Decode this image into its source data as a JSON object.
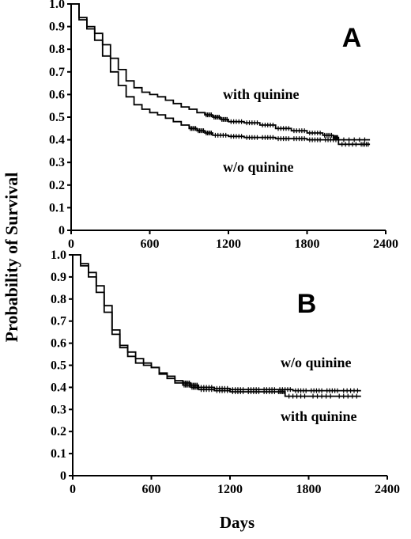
{
  "ylabel": "Probability of Survival",
  "xlabel": "Days",
  "chart_data": [
    {
      "type": "line",
      "panel": "A",
      "xlim": [
        0,
        2400
      ],
      "ylim": [
        0,
        1.0
      ],
      "x_ticks": [
        "0",
        "600",
        "1200",
        "1800",
        "2400"
      ],
      "y_ticks": [
        "0",
        "0.1",
        "0.2",
        "0.3",
        "0.4",
        "0.5",
        "0.6",
        "0.7",
        "0.8",
        "0.9",
        "1.0"
      ],
      "annotations": [
        "with quinine",
        "w/o quinine"
      ],
      "series": [
        {
          "name": "with quinine",
          "x": [
            0,
            60,
            120,
            180,
            240,
            300,
            360,
            420,
            480,
            540,
            600,
            660,
            720,
            780,
            840,
            900,
            960,
            1020,
            1080,
            1140,
            1200,
            1320,
            1440,
            1560,
            1680,
            1800,
            1920,
            2000,
            2040,
            2200,
            2280
          ],
          "y": [
            1.0,
            0.94,
            0.9,
            0.87,
            0.82,
            0.76,
            0.71,
            0.66,
            0.63,
            0.61,
            0.6,
            0.59,
            0.575,
            0.56,
            0.545,
            0.535,
            0.52,
            0.51,
            0.5,
            0.49,
            0.48,
            0.475,
            0.465,
            0.45,
            0.44,
            0.43,
            0.42,
            0.41,
            0.38,
            0.38,
            0.38
          ]
        },
        {
          "name": "w/o quinine",
          "x": [
            0,
            60,
            120,
            180,
            240,
            300,
            360,
            420,
            480,
            540,
            600,
            660,
            720,
            780,
            840,
            900,
            960,
            1020,
            1080,
            1200,
            1320,
            1440,
            1560,
            1680,
            1800,
            1920,
            2040,
            2280
          ],
          "y": [
            1.0,
            0.93,
            0.89,
            0.84,
            0.77,
            0.7,
            0.64,
            0.59,
            0.555,
            0.535,
            0.52,
            0.51,
            0.495,
            0.48,
            0.465,
            0.45,
            0.44,
            0.43,
            0.42,
            0.415,
            0.41,
            0.41,
            0.405,
            0.405,
            0.4,
            0.4,
            0.4,
            0.4
          ]
        }
      ]
    },
    {
      "type": "line",
      "panel": "B",
      "xlim": [
        0,
        2400
      ],
      "ylim": [
        0,
        1.0
      ],
      "x_ticks": [
        "0",
        "600",
        "1200",
        "1800",
        "2400"
      ],
      "y_ticks": [
        "0",
        "0.1",
        "0.2",
        "0.3",
        "0.4",
        "0.5",
        "0.6",
        "0.7",
        "0.8",
        "0.9",
        "1.0"
      ],
      "annotations": [
        "w/o quinine",
        "with quinine"
      ],
      "series": [
        {
          "name": "w/o quinine",
          "x": [
            0,
            60,
            120,
            180,
            240,
            300,
            360,
            420,
            480,
            540,
            600,
            660,
            720,
            780,
            840,
            900,
            960,
            1080,
            1200,
            1320,
            1440,
            1560,
            1680,
            1800,
            1920,
            2040,
            2200
          ],
          "y": [
            1.0,
            0.95,
            0.9,
            0.83,
            0.74,
            0.64,
            0.58,
            0.54,
            0.51,
            0.5,
            0.49,
            0.465,
            0.45,
            0.43,
            0.42,
            0.41,
            0.4,
            0.395,
            0.39,
            0.39,
            0.39,
            0.39,
            0.385,
            0.385,
            0.385,
            0.385,
            0.385
          ]
        },
        {
          "name": "with quinine",
          "x": [
            0,
            60,
            120,
            180,
            240,
            300,
            360,
            420,
            480,
            540,
            600,
            660,
            720,
            780,
            840,
            900,
            960,
            1080,
            1200,
            1320,
            1440,
            1560,
            1620,
            1800,
            2000,
            2200
          ],
          "y": [
            1.0,
            0.96,
            0.92,
            0.86,
            0.77,
            0.66,
            0.59,
            0.56,
            0.53,
            0.51,
            0.49,
            0.46,
            0.44,
            0.42,
            0.41,
            0.4,
            0.39,
            0.385,
            0.38,
            0.38,
            0.38,
            0.38,
            0.36,
            0.36,
            0.36,
            0.36
          ]
        }
      ]
    }
  ]
}
